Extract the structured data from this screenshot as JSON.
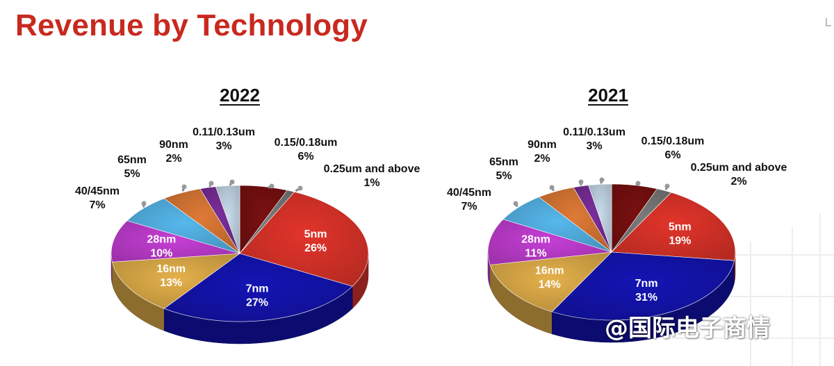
{
  "page_title": "Revenue by Technology",
  "watermark": "@国际电子商情",
  "chart_data": [
    {
      "type": "pie",
      "title": "2022",
      "slices": [
        {
          "label": "0.15/0.18um",
          "value": 6,
          "color": "#7a1010"
        },
        {
          "label": "0.25um and above",
          "value": 1,
          "color": "#7a7a7a"
        },
        {
          "label": "5nm",
          "value": 26,
          "color": "#e2342a"
        },
        {
          "label": "7nm",
          "value": 27,
          "color": "#1414b4"
        },
        {
          "label": "16nm",
          "value": 13,
          "color": "#e4b04a"
        },
        {
          "label": "28nm",
          "value": 10,
          "color": "#c63ed6"
        },
        {
          "label": "40/45nm",
          "value": 7,
          "color": "#56b8ec"
        },
        {
          "label": "65nm",
          "value": 5,
          "color": "#df7a36"
        },
        {
          "label": "90nm",
          "value": 2,
          "color": "#7a2e9a"
        },
        {
          "label": "0.11/0.13um",
          "value": 3,
          "color": "#c8dcec"
        }
      ]
    },
    {
      "type": "pie",
      "title": "2021",
      "slices": [
        {
          "label": "0.15/0.18um",
          "value": 6,
          "color": "#7a1010"
        },
        {
          "label": "0.25um and above",
          "value": 2,
          "color": "#7a7a7a"
        },
        {
          "label": "5nm",
          "value": 19,
          "color": "#e2342a"
        },
        {
          "label": "7nm",
          "value": 31,
          "color": "#1414b4"
        },
        {
          "label": "16nm",
          "value": 14,
          "color": "#e4b04a"
        },
        {
          "label": "28nm",
          "value": 11,
          "color": "#c63ed6"
        },
        {
          "label": "40/45nm",
          "value": 7,
          "color": "#56b8ec"
        },
        {
          "label": "65nm",
          "value": 5,
          "color": "#df7a36"
        },
        {
          "label": "90nm",
          "value": 2,
          "color": "#7a2e9a"
        },
        {
          "label": "0.11/0.13um",
          "value": 3,
          "color": "#c8dcec"
        }
      ]
    }
  ]
}
